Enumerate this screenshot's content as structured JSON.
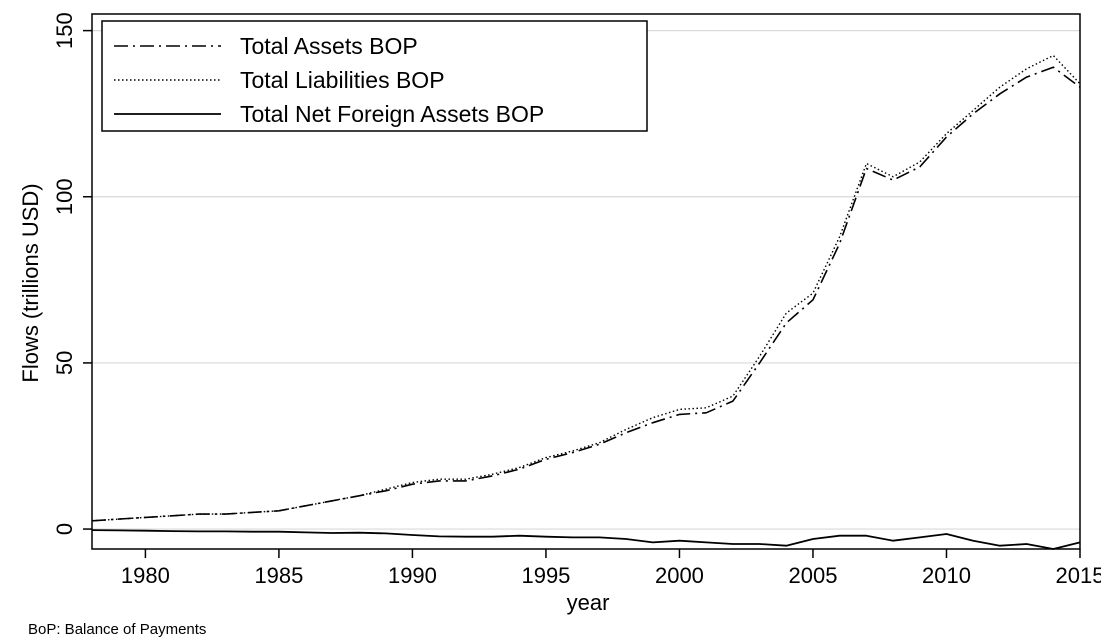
{
  "chart_data": {
    "type": "line",
    "xlabel": "year",
    "ylabel": "Flows (trillions USD)",
    "note": "BoP: Balance of Payments",
    "xlim": [
      1978,
      2015
    ],
    "ylim": [
      -6,
      155
    ],
    "x_ticks": [
      1980,
      1985,
      1990,
      1995,
      2000,
      2005,
      2010,
      2015
    ],
    "y_ticks": [
      0,
      50,
      100,
      150
    ],
    "grid": "horizontal",
    "legend_position": "top-left",
    "x": [
      1978,
      1979,
      1980,
      1981,
      1982,
      1983,
      1984,
      1985,
      1986,
      1987,
      1988,
      1989,
      1990,
      1991,
      1992,
      1993,
      1994,
      1995,
      1996,
      1997,
      1998,
      1999,
      2000,
      2001,
      2002,
      2003,
      2004,
      2005,
      2006,
      2007,
      2008,
      2009,
      2010,
      2011,
      2012,
      2013,
      2014,
      2015
    ],
    "series": [
      {
        "name": "Total Assets BOP",
        "style": "dash-dot",
        "values": [
          2.5,
          3,
          3.5,
          4,
          4.5,
          4.5,
          5,
          5.5,
          7,
          8.5,
          10,
          11.5,
          13.5,
          14.5,
          14.5,
          16,
          18,
          21,
          23,
          25.5,
          29,
          32,
          34.5,
          35,
          38.5,
          50,
          62,
          69,
          86,
          108.5,
          105,
          109,
          118,
          125,
          131,
          136,
          139,
          133
        ]
      },
      {
        "name": "Total Liabilities BOP",
        "style": "dotted",
        "values": [
          2.5,
          3,
          3.5,
          4,
          4.5,
          4.5,
          5,
          5.5,
          7,
          8.5,
          10,
          12,
          14,
          15,
          15,
          16.5,
          18.5,
          21.5,
          23.5,
          26,
          30,
          33.5,
          36,
          36.5,
          40,
          52,
          65,
          71,
          88,
          110,
          106,
          110.5,
          119,
          126,
          133,
          138.5,
          142.5,
          134
        ]
      },
      {
        "name": "Total Net Foreign Assets BOP",
        "style": "solid",
        "values": [
          -0.3,
          -0.4,
          -0.5,
          -0.6,
          -0.7,
          -0.7,
          -0.8,
          -0.8,
          -1,
          -1.2,
          -1.1,
          -1.3,
          -1.8,
          -2.2,
          -2.3,
          -2.3,
          -2,
          -2.3,
          -2.5,
          -2.5,
          -3,
          -4,
          -3.5,
          -4,
          -4.5,
          -4.5,
          -5,
          -3,
          -2,
          -2,
          -3.5,
          -2.5,
          -1.5,
          -3.5,
          -5,
          -4.5,
          -6,
          -4
        ]
      }
    ]
  }
}
